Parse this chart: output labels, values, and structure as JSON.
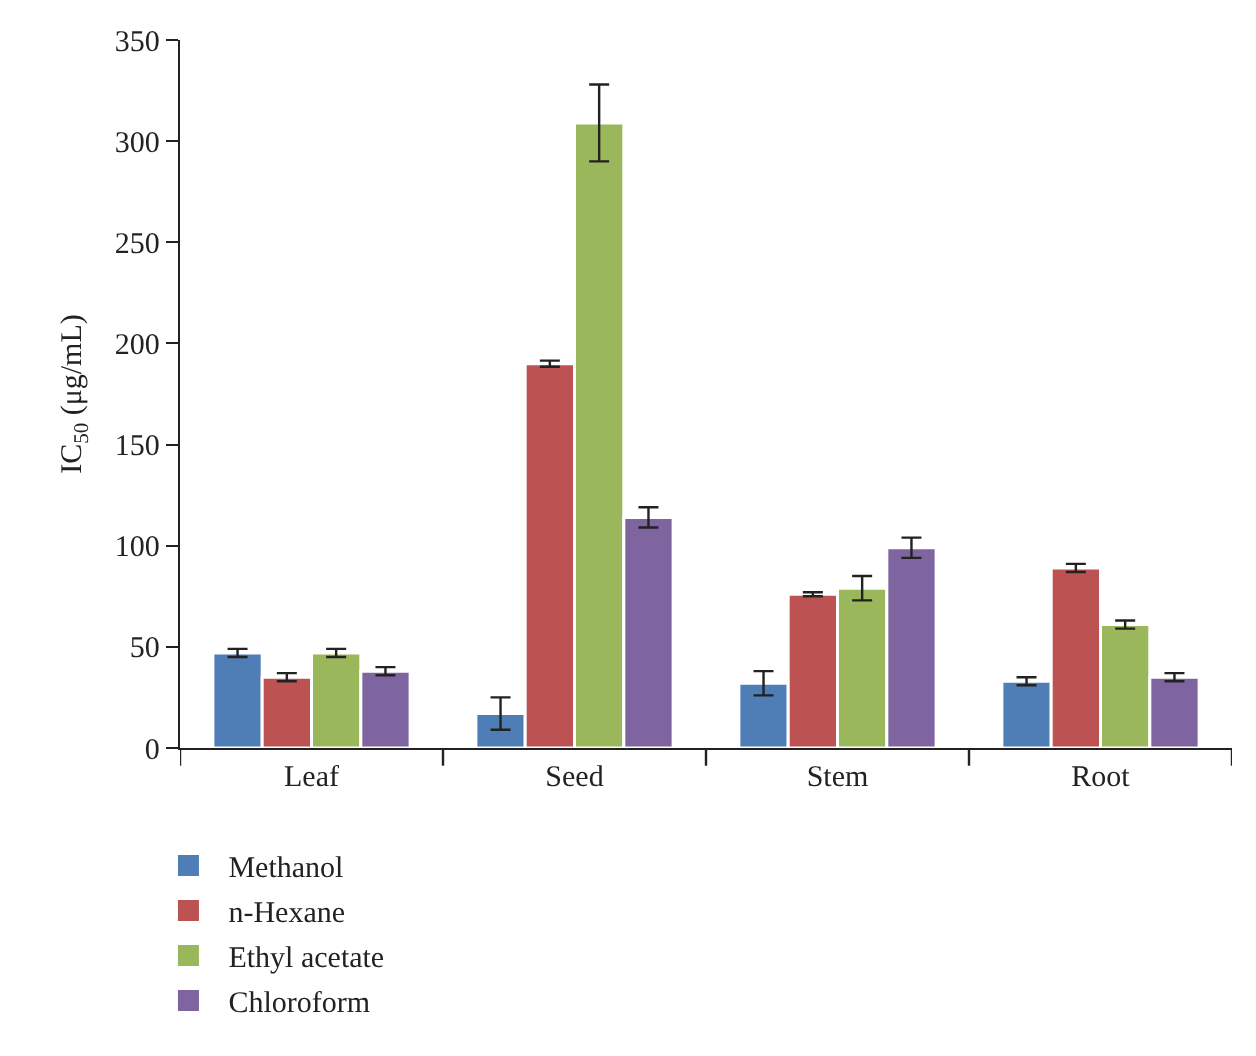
{
  "chart_data": {
    "type": "bar",
    "ylabel": "IC$_{50}$ (μg/mL)",
    "categories": [
      "Leaf",
      "Seed",
      "Stem",
      "Root"
    ],
    "series": [
      {
        "name": "Methanol",
        "color": "#4f7db6",
        "values": [
          47,
          17,
          32,
          33
        ],
        "errors": [
          2,
          8,
          6,
          2
        ]
      },
      {
        "name": "n-Hexane",
        "color": "#bc5352",
        "values": [
          35,
          190,
          76,
          89
        ],
        "errors": [
          2,
          1.5,
          1,
          2
        ]
      },
      {
        "name": "Ethyl acetate",
        "color": "#9bb75c",
        "values": [
          47,
          309,
          79,
          61
        ],
        "errors": [
          2,
          19,
          6,
          2
        ]
      },
      {
        "name": "Chloroform",
        "color": "#7f65a0",
        "values": [
          38,
          114,
          99,
          35
        ],
        "errors": [
          2,
          5,
          5,
          2
        ]
      }
    ],
    "ylim": [
      0,
      350
    ],
    "yticks": [
      0,
      50,
      100,
      150,
      200,
      250,
      300,
      350
    ],
    "grid": false,
    "legend": "bottom left"
  }
}
